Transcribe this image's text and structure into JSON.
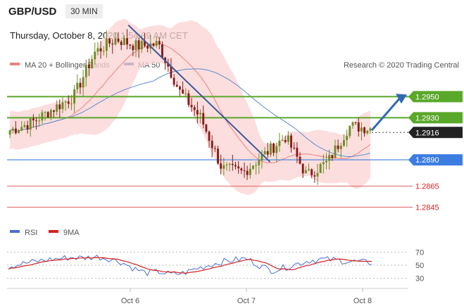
{
  "header": {
    "pair": "GBP/USD",
    "timeframe": "30 MIN",
    "timestamp": "Thursday, October 8, 2020 1:54:39 AM CET"
  },
  "legend": {
    "ma20_bb": "MA 20 + Bollinger Bands",
    "ma50": "MA 50",
    "credit": "Research © 2020 Trading Central",
    "rsi": "RSI",
    "ma9": "9MA"
  },
  "colors": {
    "up_candle": "#6b8e23",
    "down_candle": "#8b1a1a",
    "bb_fill": "#fbd3d3",
    "ma20": "#f08080",
    "ma50": "#5b8bd0",
    "resistance": "#5aa82a",
    "support": "#3b7de0",
    "red_level": "#e06060",
    "trendline": "#3a5a9a",
    "arrow": "#2f6bb5",
    "rsi": "#4a6ed0",
    "rsi_ma": "#d62020"
  },
  "chart_data": [
    {
      "type": "candlestick",
      "x_labels": [
        "Oct 6",
        "Oct 7",
        "Oct 8"
      ],
      "ylim": [
        1.2838,
        1.2975
      ],
      "price_tags": [
        {
          "value": 1.295,
          "label": "1.2950",
          "kind": "resistance"
        },
        {
          "value": 1.293,
          "label": "1.2930",
          "kind": "resistance"
        },
        {
          "value": 1.2916,
          "label": "1.2916",
          "kind": "last"
        },
        {
          "value": 1.289,
          "label": "1.2890",
          "kind": "support"
        },
        {
          "value": 1.2865,
          "label": "1.2865",
          "kind": "level"
        },
        {
          "value": 1.2845,
          "label": "1.2845",
          "kind": "level"
        }
      ],
      "close_anchors": [
        1.2918,
        1.2925,
        1.2938,
        1.295,
        1.2992,
        1.3005,
        1.2998,
        1.3,
        1.2955,
        1.293,
        1.2882,
        1.2878,
        1.2895,
        1.2912,
        1.2875,
        1.2888,
        1.2922,
        1.292
      ],
      "trendline": {
        "from": [
          0.33,
          1.3018
        ],
        "to": [
          0.72,
          1.2888
        ]
      },
      "forecast_arrow": {
        "from": 1.2918,
        "to": 1.295
      }
    },
    {
      "type": "line",
      "name": "RSI",
      "ylim": [
        20,
        80
      ],
      "y_ticks": [
        70,
        50,
        30
      ],
      "values": [
        48,
        52,
        55,
        58,
        60,
        62,
        61,
        63,
        60,
        55,
        45,
        38,
        40,
        36,
        38,
        45,
        50,
        55,
        58,
        60,
        50,
        42,
        46,
        52,
        57,
        59,
        58,
        56,
        55,
        54
      ]
    }
  ]
}
